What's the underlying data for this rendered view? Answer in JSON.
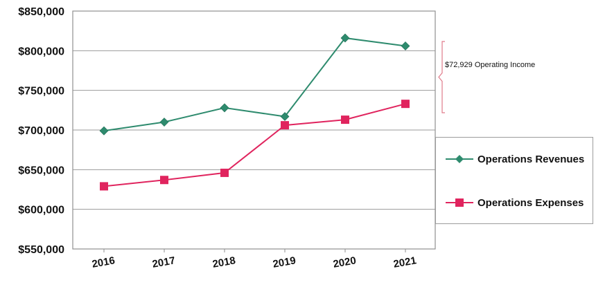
{
  "chart_data": {
    "type": "line",
    "title": "",
    "xlabel": "",
    "ylabel": "",
    "categories": [
      "2016",
      "2017",
      "2018",
      "2019",
      "2020",
      "2021"
    ],
    "y_ticks": [
      "$550,000",
      "$600,000",
      "$650,000",
      "$700,000",
      "$750,000",
      "$800,000",
      "$850,000"
    ],
    "ylim": [
      550000,
      850000
    ],
    "grid": "horizontal",
    "legend_position": "right",
    "series": [
      {
        "name": "Operations Revenues",
        "values": [
          699000,
          710000,
          728000,
          717000,
          816000,
          806000
        ],
        "color": "#2e8b6e",
        "marker": "diamond"
      },
      {
        "name": "Operations Expenses",
        "values": [
          629000,
          637000,
          646000,
          706000,
          713000,
          733000
        ],
        "color": "#e0245e",
        "marker": "square"
      }
    ],
    "annotations": [
      {
        "text": "$72,929 Operating Income"
      }
    ]
  }
}
